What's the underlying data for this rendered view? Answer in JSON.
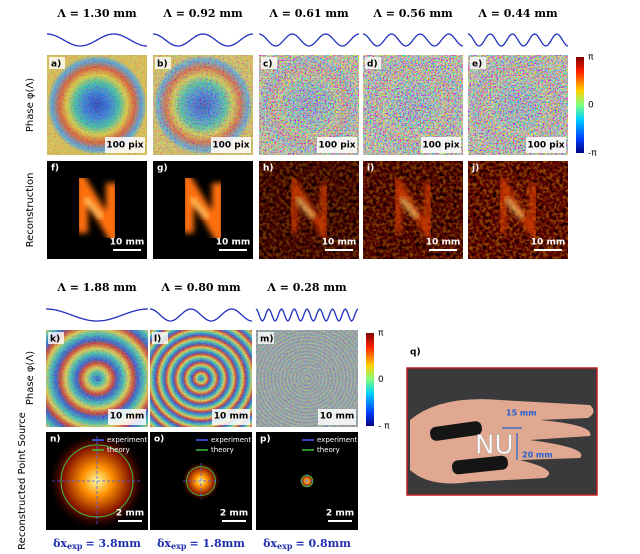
{
  "top": {
    "headers": [
      "Λ = 1.30 mm",
      "Λ = 0.92 mm",
      "Λ = 0.61 mm",
      "Λ = 0.56 mm",
      "Λ = 0.44 mm"
    ],
    "row_labels": [
      "Phase φ(Λ)",
      "Reconstruction"
    ],
    "phase_panels": [
      {
        "label": "a)",
        "scale": "100 pix"
      },
      {
        "label": "b)",
        "scale": "100 pix"
      },
      {
        "label": "c)",
        "scale": "100 pix"
      },
      {
        "label": "d)",
        "scale": "100 pix"
      },
      {
        "label": "e)",
        "scale": "100 pix"
      }
    ],
    "recon_panels": [
      {
        "label": "f)",
        "scale": "10 mm"
      },
      {
        "label": "g)",
        "scale": "10 mm"
      },
      {
        "label": "h)",
        "scale": "10 mm"
      },
      {
        "label": "i)",
        "scale": "10 mm"
      },
      {
        "label": "j)",
        "scale": "10 mm"
      }
    ],
    "colorbar": [
      "π",
      "0",
      "-π"
    ]
  },
  "bottom": {
    "headers": [
      "Λ = 1.88 mm",
      "Λ = 0.80 mm",
      "Λ = 0.28 mm"
    ],
    "row_labels": [
      "Phase φ(Λ)",
      "Reconstructed Point Source"
    ],
    "phase_panels": [
      {
        "label": "k)",
        "scale": "10 mm"
      },
      {
        "label": "l)",
        "scale": "10 mm"
      },
      {
        "label": "m)",
        "scale": "10 mm"
      }
    ],
    "recon_panels": [
      {
        "label": "n)",
        "scale": "2 mm"
      },
      {
        "label": "o)",
        "scale": "2 mm"
      },
      {
        "label": "p)",
        "scale": "2 mm"
      }
    ],
    "legend": [
      "experiment",
      "theory"
    ],
    "resolution": [
      {
        "symbol": "δx",
        "subscript": "exp",
        "value": "= 3.8mm"
      },
      {
        "symbol": "δx",
        "subscript": "exp",
        "value": "= 1.8mm"
      },
      {
        "symbol": "δx",
        "subscript": "exp",
        "value": "= 0.8mm"
      }
    ],
    "colorbar": [
      "π",
      "0",
      "- π"
    ]
  },
  "photo": {
    "label": "q)",
    "letters": "NU",
    "annotations": [
      "15 mm",
      "20 mm"
    ]
  }
}
